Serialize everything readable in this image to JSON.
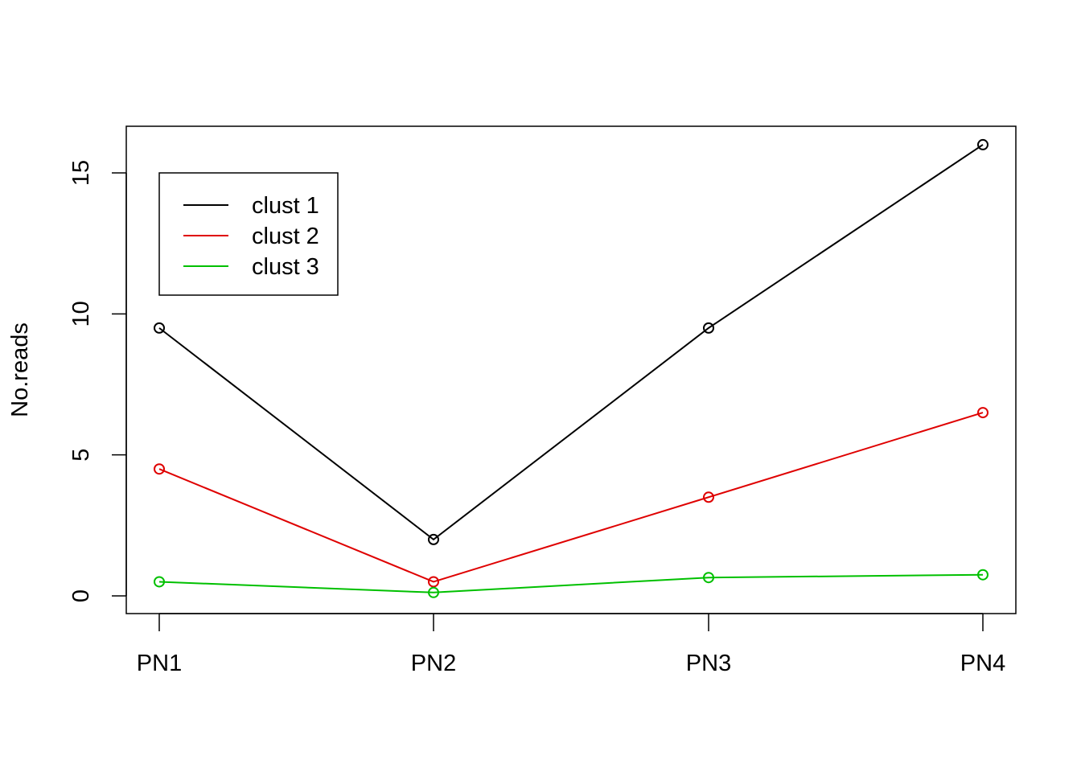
{
  "chart_data": {
    "type": "line",
    "title": "",
    "xlabel": "",
    "ylabel": "No.reads",
    "categories": [
      "PN1",
      "PN2",
      "PN3",
      "PN4"
    ],
    "ylim": [
      -0.6,
      16.7
    ],
    "yticks": [
      0,
      5,
      10,
      15
    ],
    "ytick_labels": [
      "0",
      "5",
      "10",
      "15"
    ],
    "grid": false,
    "markers": "open-circle",
    "legend": {
      "position": "top-left",
      "boxed": true
    },
    "series": [
      {
        "name": "clust 1",
        "color": "#000000",
        "values": [
          9.5,
          2.0,
          9.5,
          16.0
        ]
      },
      {
        "name": "clust 2",
        "color": "#df0000",
        "values": [
          4.5,
          0.5,
          3.5,
          6.5
        ]
      },
      {
        "name": "clust 3",
        "color": "#00c000",
        "values": [
          0.5,
          0.12,
          0.65,
          0.75
        ]
      }
    ]
  }
}
